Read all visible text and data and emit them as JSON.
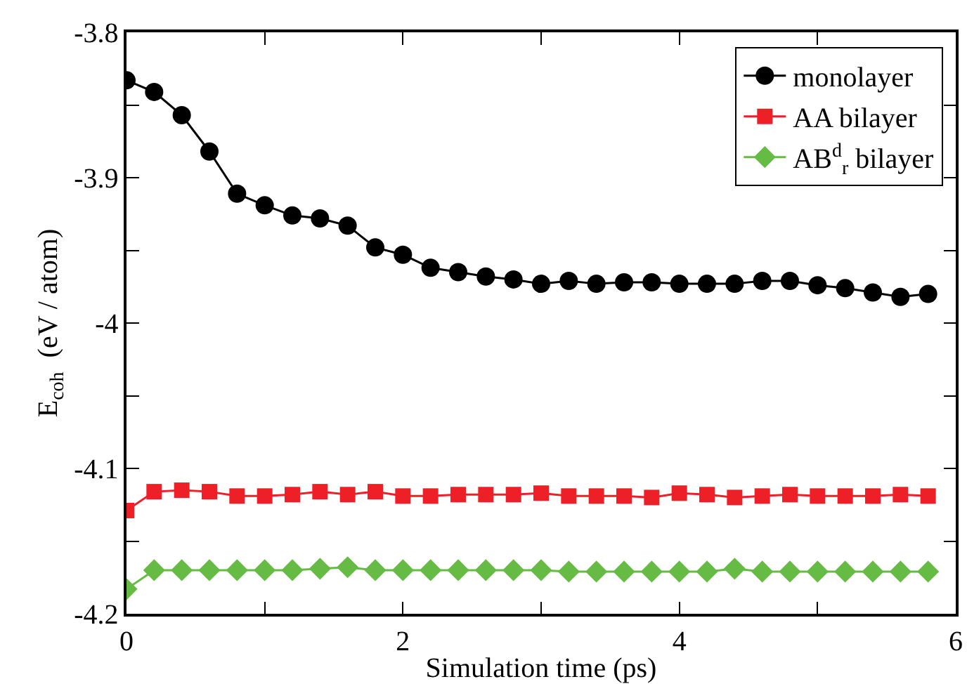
{
  "chart_data": {
    "type": "line",
    "xlabel": "Simulation time (ps)",
    "ylabel": "E$_{coh}$  (eV / atom)",
    "x": [
      0,
      0.2,
      0.4,
      0.6,
      0.8,
      1.0,
      1.2,
      1.4,
      1.6,
      1.8,
      2.0,
      2.2,
      2.4,
      2.6,
      2.8,
      3.0,
      3.2,
      3.4,
      3.6,
      3.8,
      4.0,
      4.2,
      4.4,
      4.6,
      4.8,
      5.0,
      5.2,
      5.4,
      5.6,
      5.8
    ],
    "series": [
      {
        "name": "monolayer",
        "color": "#000000",
        "marker": "circle",
        "values": [
          -3.833,
          -3.841,
          -3.857,
          -3.882,
          -3.911,
          -3.919,
          -3.926,
          -3.928,
          -3.933,
          -3.948,
          -3.953,
          -3.962,
          -3.965,
          -3.968,
          -3.97,
          -3.973,
          -3.971,
          -3.973,
          -3.972,
          -3.972,
          -3.973,
          -3.973,
          -3.973,
          -3.971,
          -3.971,
          -3.974,
          -3.976,
          -3.979,
          -3.982,
          -3.98
        ]
      },
      {
        "name": "AA bilayer",
        "color": "#ee2027",
        "marker": "square",
        "values": [
          -4.129,
          -4.116,
          -4.115,
          -4.116,
          -4.119,
          -4.119,
          -4.118,
          -4.116,
          -4.118,
          -4.116,
          -4.119,
          -4.119,
          -4.118,
          -4.118,
          -4.118,
          -4.117,
          -4.119,
          -4.119,
          -4.119,
          -4.12,
          -4.117,
          -4.118,
          -4.12,
          -4.119,
          -4.118,
          -4.119,
          -4.119,
          -4.119,
          -4.118,
          -4.119
        ]
      },
      {
        "name": "AB$^{d}$$_{r}$ bilayer",
        "color": "#66bb44",
        "marker": "diamond",
        "values": [
          -4.183,
          -4.17,
          -4.17,
          -4.17,
          -4.17,
          -4.17,
          -4.17,
          -4.169,
          -4.168,
          -4.17,
          -4.17,
          -4.17,
          -4.17,
          -4.17,
          -4.17,
          -4.17,
          -4.171,
          -4.171,
          -4.171,
          -4.171,
          -4.171,
          -4.171,
          -4.169,
          -4.171,
          -4.171,
          -4.171,
          -4.171,
          -4.171,
          -4.171,
          -4.171
        ]
      }
    ],
    "xlim": [
      0,
      6
    ],
    "xticks": [
      0,
      {
        "value": 1,
        "label": null
      },
      2,
      {
        "value": 3,
        "label": null
      },
      4,
      {
        "value": 5,
        "label": null
      },
      6
    ],
    "ylim": [
      -4.2,
      -3.8
    ],
    "yticks": [
      -4.2,
      {
        "value": -4.15,
        "label": null
      },
      -4.1,
      {
        "value": -4.05,
        "label": null
      },
      -4,
      {
        "value": -3.95,
        "label": null
      },
      -3.9,
      {
        "value": -3.85,
        "label": null
      },
      -3.8
    ],
    "grid": false,
    "legend": "top right",
    "line_style": "solid"
  }
}
